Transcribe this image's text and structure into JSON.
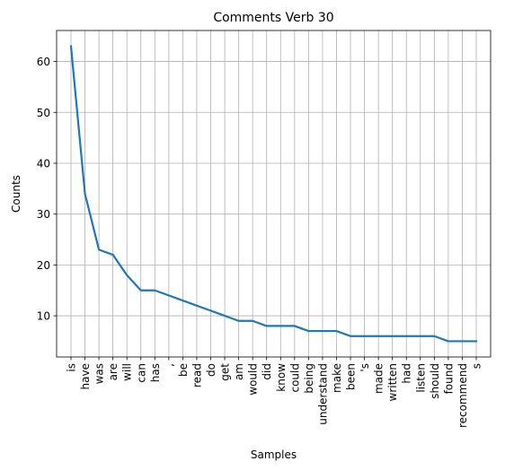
{
  "chart_data": {
    "type": "line",
    "title": "Comments Verb 30",
    "xlabel": "Samples",
    "ylabel": "Counts",
    "categories": [
      "is",
      "have",
      "was",
      "are",
      "will",
      "can",
      "has",
      ",",
      "be",
      "read",
      "do",
      "get",
      "am",
      "would",
      "did",
      "know",
      "could",
      "being",
      "understand",
      "make",
      "been",
      "'s",
      "made",
      "written",
      "had",
      "listen",
      "should",
      "found",
      "recommend",
      "s"
    ],
    "values": [
      63,
      34,
      23,
      22,
      18,
      15,
      15,
      14,
      13,
      12,
      11,
      10,
      9,
      9,
      8,
      8,
      8,
      7,
      7,
      7,
      6,
      6,
      6,
      6,
      6,
      6,
      6,
      5,
      5,
      5
    ],
    "ylim": [
      1.9,
      66.1
    ],
    "yticks": [
      10,
      20,
      30,
      40,
      50,
      60
    ],
    "grid": true,
    "series_color": "#1f77b4"
  }
}
